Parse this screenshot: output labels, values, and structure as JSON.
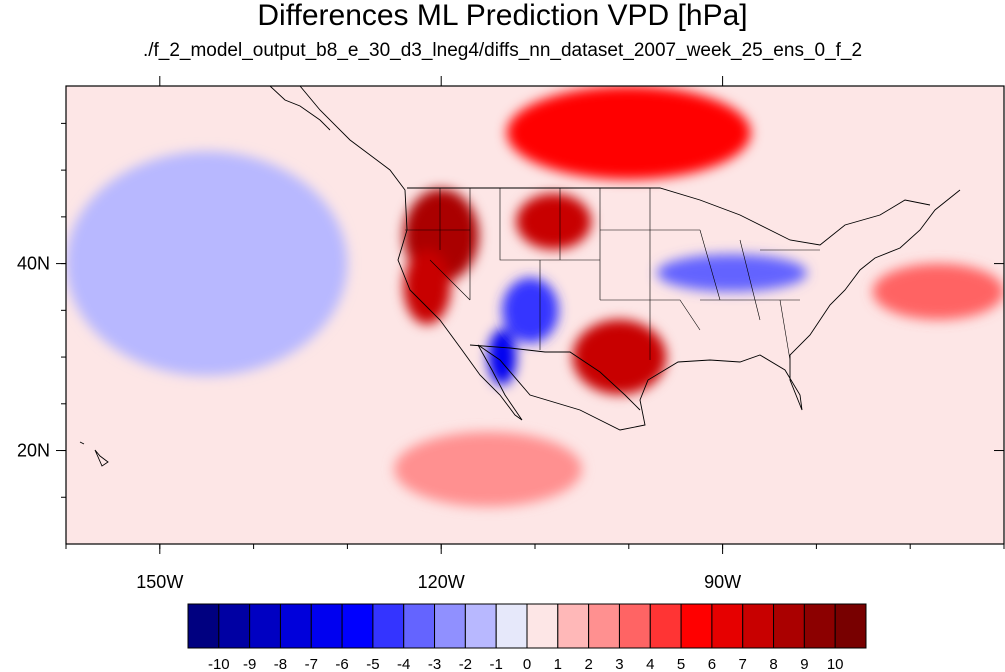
{
  "title": "Differences ML Prediction VPD [hPa]",
  "subtitle": "./f_2_model_output_b8_e_30_d3_lneg4/diffs_nn_dataset_2007_week_25_ens_0_f_2",
  "map": {
    "projection": "cylindrical equidistant",
    "lon_range": [
      -160,
      -60
    ],
    "lat_range": [
      10,
      59
    ],
    "x_ticks": [
      {
        "value": -150,
        "label": "150W"
      },
      {
        "value": -120,
        "label": "120W"
      },
      {
        "value": -90,
        "label": "90W"
      }
    ],
    "y_ticks": [
      {
        "value": 40,
        "label": "40N"
      },
      {
        "value": 20,
        "label": "20N"
      }
    ],
    "background_color": "#fde6e6"
  },
  "colorbar": {
    "levels": [
      "-10",
      "-9",
      "-8",
      "-7",
      "-6",
      "-5",
      "-4",
      "-3",
      "-2",
      "-1",
      "0",
      "1",
      "2",
      "3",
      "4",
      "5",
      "6",
      "7",
      "8",
      "9",
      "10"
    ],
    "colors": [
      "#000080",
      "#0000a3",
      "#0000c2",
      "#0000db",
      "#0000f0",
      "#0000ff",
      "#3434ff",
      "#6464ff",
      "#9090ff",
      "#b8b8ff",
      "#e6e8fa",
      "#fde6e6",
      "#ffb8b8",
      "#ff9090",
      "#ff6464",
      "#ff3434",
      "#ff0000",
      "#e60000",
      "#c80000",
      "#aa0000",
      "#8c0000",
      "#780000"
    ]
  },
  "regions": [
    {
      "name": "northwest-us-warm-anomaly",
      "value": 8,
      "lon": -120,
      "lat": 43,
      "rlon": 4,
      "rlat": 5
    },
    {
      "name": "idaho-montana-warm-anomaly",
      "value": 7,
      "lon": -108,
      "lat": 44.5,
      "rlon": 4,
      "rlat": 3
    },
    {
      "name": "california-warm-anomaly",
      "value": 7,
      "lon": -121.5,
      "lat": 37.5,
      "rlon": 2.5,
      "rlat": 4
    },
    {
      "name": "texas-warm-anomaly",
      "value": 7,
      "lon": -101,
      "lat": 30,
      "rlon": 5,
      "rlat": 4
    },
    {
      "name": "canada-warm-anomaly",
      "value": 5,
      "lon": -100,
      "lat": 54,
      "rlon": 13,
      "rlat": 5
    },
    {
      "name": "southwest-cool-anomaly",
      "value": -5,
      "lon": -110.5,
      "lat": 35,
      "rlon": 3,
      "rlat": 3.5
    },
    {
      "name": "baja-cool-anomaly",
      "value": -7,
      "lon": -113.5,
      "lat": 30,
      "rlon": 1.5,
      "rlat": 3
    },
    {
      "name": "midwest-cool-anomaly",
      "value": -4,
      "lon": -89,
      "lat": 39,
      "rlon": 8,
      "rlat": 2
    },
    {
      "name": "pacific-cool-anomaly",
      "value": -2,
      "lon": -145,
      "lat": 40,
      "rlon": 15,
      "rlat": 12
    },
    {
      "name": "atlantic-warm-anomaly",
      "value": 3,
      "lon": -67,
      "lat": 37,
      "rlon": 7,
      "rlat": 3
    },
    {
      "name": "mexico-warm-anomaly",
      "value": 2,
      "lon": -115,
      "lat": 18,
      "rlon": 10,
      "rlat": 4
    }
  ]
}
